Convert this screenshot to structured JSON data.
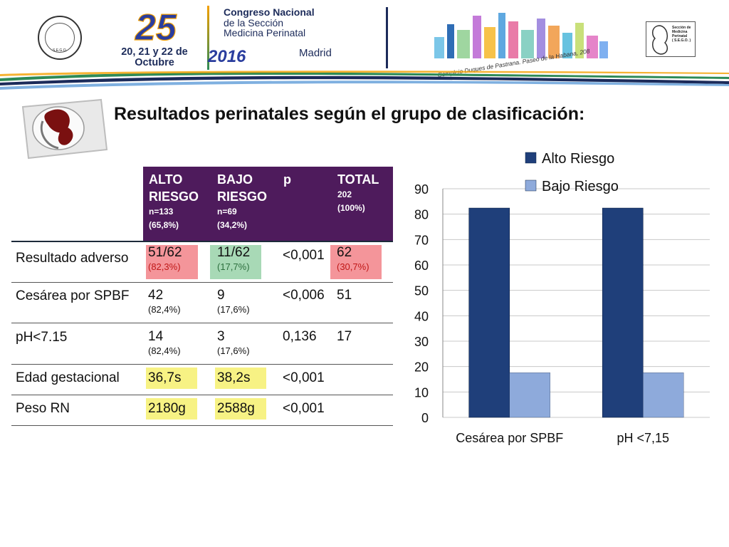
{
  "header": {
    "logo_number": "25",
    "dates": "20, 21 y 22 de Octubre",
    "year": "2016",
    "congress_line1": "Congreso Nacional",
    "congress_line2": "de la Sección",
    "congress_line3": "Medicina Perinatal",
    "city": "Madrid",
    "venue": "Complejo Duques de Pastrana. Paseo de la Habana, 208",
    "left_seal_text": "S.E.G.O.",
    "right_seal_line1": "Sección de",
    "right_seal_line2": "Medicina",
    "right_seal_line3": "Perinatal",
    "right_seal_line4": "( S.E.G.O. )",
    "colors": {
      "navy": "#1c2b5a",
      "green": "#2e8b57",
      "orange": "#f4a000"
    }
  },
  "title": "Resultados perinatales según el grupo de clasificación:",
  "table": {
    "header_bg": "#4e1b5c",
    "headers": [
      {
        "title1": "ALTO",
        "title2": "RIESGO",
        "sub1": "n=133",
        "sub2": "(65,8%)"
      },
      {
        "title1": "BAJO",
        "title2": "RIESGO",
        "sub1": "n=69",
        "sub2": "(34,2%)"
      },
      {
        "title1": "p",
        "title2": "",
        "sub1": "",
        "sub2": ""
      },
      {
        "title1": "TOTAL",
        "title2": "",
        "sub1": "202",
        "sub2": "(100%)"
      }
    ],
    "rows": [
      {
        "label": "Resultado adverso",
        "alto": "51/62",
        "alto_pct": "(82,3%)",
        "bajo": "11/62",
        "bajo_pct": "(17,7%)",
        "p": "<0,001",
        "total": "62",
        "total_pct": "(30,7%)"
      },
      {
        "label": "Cesárea por SPBF",
        "alto": "42",
        "alto_pct": "(82,4%)",
        "bajo": "9",
        "bajo_pct": "(17,6%)",
        "p": "<0,006",
        "total": "51",
        "total_pct": ""
      },
      {
        "label": "pH<7.15",
        "alto": "14",
        "alto_pct": "(82,4%)",
        "bajo": "3",
        "bajo_pct": "(17,6%)",
        "p": "0,136",
        "total": "17",
        "total_pct": ""
      },
      {
        "label": "Edad gestacional",
        "alto": "36,7s",
        "alto_pct": "",
        "bajo": "38,2s",
        "bajo_pct": "",
        "p": "<0,001",
        "total": "",
        "total_pct": ""
      },
      {
        "label": "Peso RN",
        "alto": "2180g",
        "alto_pct": "",
        "bajo": "2588g",
        "bajo_pct": "",
        "p": "<0,001",
        "total": "",
        "total_pct": ""
      }
    ]
  },
  "chart_data": {
    "type": "bar",
    "categories": [
      "Cesárea por SPBF",
      "pH <7,15"
    ],
    "series": [
      {
        "name": "Alto Riesgo",
        "values": [
          82.4,
          82.4
        ],
        "color": "#1f3f7a"
      },
      {
        "name": "Bajo Riesgo",
        "values": [
          17.6,
          17.6
        ],
        "color": "#8eaadb"
      }
    ],
    "ylim": [
      0,
      90
    ],
    "yticks": [
      "0",
      "10",
      "20",
      "30",
      "40",
      "50",
      "60",
      "70",
      "80",
      "90"
    ],
    "grid": true,
    "legend": "top-right",
    "title": "",
    "xlabel": "",
    "ylabel": ""
  }
}
